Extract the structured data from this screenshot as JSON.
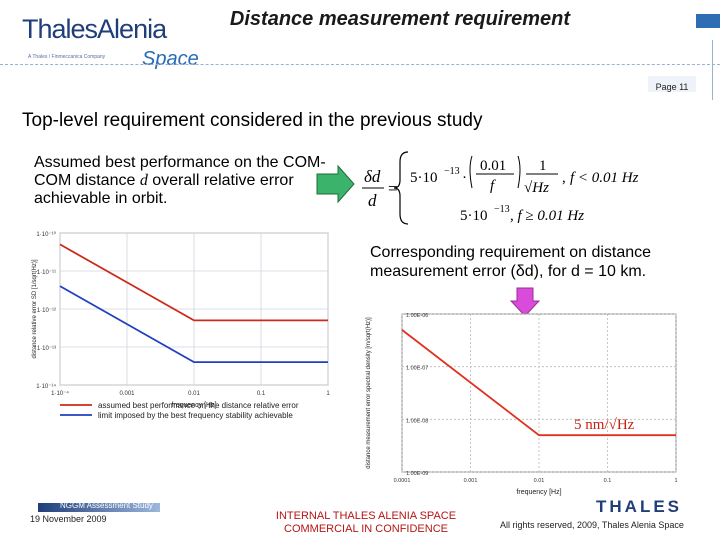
{
  "header": {
    "title": "Distance measurement requirement",
    "page_label": "Page 11",
    "logo_line1": "ThalesAlenia",
    "logo_line2": "A Thales / Finmeccanica Company",
    "logo_line3": "Space"
  },
  "content": {
    "heading": "Top-level requirement considered in the previous study",
    "note1_a": "Assumed best performance on the COM-COM distance ",
    "note1_var": "d",
    "note1_b": " overall relative error achievable in orbit.",
    "note2": "Corresponding requirement on distance measurement error (δd), for d = 10 km.",
    "formula": {
      "lhs_top": "δd",
      "lhs_bot": "d",
      "case1_coef": "5·10",
      "case1_exp": "−13",
      "case1_frac_top": "0.01",
      "case1_frac_bot": "f",
      "case1_one": "1",
      "case1_root": "√Hz",
      "case1_cond": "f  < 0.01 Hz",
      "case2": "5·10",
      "case2_exp": "−13",
      "case2_cond": ", f ≥ 0.01 Hz"
    }
  },
  "chart_data": [
    {
      "type": "line",
      "x_scale": "log",
      "y_scale": "log",
      "xlabel": "frequency [Hz]",
      "ylabel": "distance relative error SD [1/sqrt(Hz)]",
      "x_ticks": [
        "1·10⁻⁴",
        "0.001",
        "0.01",
        "0.1",
        "1"
      ],
      "y_ticks": [
        "1·10⁻¹⁰",
        "1·10⁻¹¹",
        "1·10⁻¹²",
        "1·10⁻¹³",
        "1·10⁻¹⁴"
      ],
      "xlim": [
        0.0001,
        1
      ],
      "ylim": [
        1e-14,
        1e-10
      ],
      "series": [
        {
          "name": "assumed best performance on the distance relative error",
          "color": "#cc2a1a",
          "x": [
            0.0001,
            0.001,
            0.01,
            1
          ],
          "y": [
            5e-11,
            5e-12,
            5e-13,
            5e-13
          ]
        },
        {
          "name": "limit imposed by the best frequency stability achievable",
          "color": "#2040c0",
          "x": [
            0.0001,
            0.001,
            0.01,
            1
          ],
          "y": [
            4e-12,
            4e-13,
            4e-14,
            4e-14
          ]
        }
      ]
    },
    {
      "type": "line",
      "x_scale": "log",
      "y_scale": "log",
      "xlabel": "frequency [Hz]",
      "ylabel": "distance measurement error spectral density [m/sqrt(Hz)]",
      "x_ticks": [
        "0.0001",
        "0.001",
        "0.01",
        "0.1",
        "1"
      ],
      "y_ticks": [
        "1.00E-06",
        "1.00E-07",
        "1.00E-08",
        "1.00E-09"
      ],
      "xlim": [
        0.0001,
        1
      ],
      "ylim": [
        1e-09,
        1e-06
      ],
      "annotation": "5 nm/√Hz",
      "series": [
        {
          "name": "",
          "color": "#e0311e",
          "x": [
            0.0001,
            0.01,
            1
          ],
          "y": [
            5e-07,
            5e-09,
            5e-09
          ]
        }
      ]
    }
  ],
  "footer": {
    "study": "NGGM Assessment Study",
    "date": "19 November 2009",
    "center1": "INTERNAL THALES ALENIA SPACE",
    "center2": "COMMERCIAL IN CONFIDENCE",
    "rights": "All rights reserved, 2009, Thales Alenia Space",
    "brand": "THALES"
  },
  "colors": {
    "accent": "#1f3e7a",
    "red_series": "#cc2a1a",
    "blue_series": "#2040c0",
    "arrow": "#3bb36a"
  }
}
